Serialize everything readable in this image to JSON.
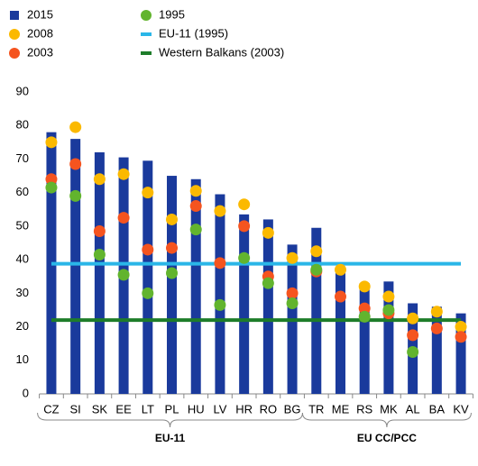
{
  "chart_data": {
    "type": "bar",
    "categories": [
      "CZ",
      "SI",
      "SK",
      "EE",
      "LT",
      "PL",
      "HU",
      "LV",
      "HR",
      "RO",
      "BG",
      "TR",
      "ME",
      "RS",
      "MK",
      "AL",
      "BA",
      "KV"
    ],
    "groups": [
      {
        "label": "EU-11",
        "count": 11
      },
      {
        "label": "EU CC/PCC",
        "count": 7
      }
    ],
    "ylim": [
      0,
      90
    ],
    "yticks": [
      0,
      10,
      20,
      30,
      40,
      50,
      60,
      70,
      80,
      90
    ],
    "series": [
      {
        "name": "2015",
        "type": "bar",
        "color": "#1a3a9c",
        "values": [
          78,
          76,
          72,
          70.5,
          69.5,
          65,
          64,
          59.5,
          53.5,
          52,
          44.5,
          49.5,
          37,
          33,
          33.5,
          27,
          26,
          24
        ]
      },
      {
        "name": "2008",
        "type": "scatter",
        "color": "#fbb900",
        "values": [
          75,
          79.5,
          64,
          65.5,
          60,
          52,
          60.5,
          54.5,
          56.5,
          48,
          40.5,
          42.5,
          37,
          32,
          29,
          22.5,
          24.5,
          20
        ]
      },
      {
        "name": "2003",
        "type": "scatter",
        "color": "#f5541f",
        "values": [
          64,
          68.5,
          48.5,
          52.5,
          43,
          43.5,
          56,
          39,
          50,
          35,
          30,
          36.5,
          29,
          25.5,
          24,
          17.5,
          19.5,
          17
        ]
      },
      {
        "name": "1995",
        "type": "scatter",
        "color": "#62b42e",
        "values": [
          61.5,
          59,
          41.5,
          35.5,
          30,
          36,
          49,
          26.5,
          40.5,
          33,
          27,
          37,
          null,
          23,
          25,
          12.5,
          null,
          null
        ]
      },
      {
        "name": "EU-11 (1995)",
        "type": "hline",
        "color": "#2ab6e8",
        "value": 38.8
      },
      {
        "name": "Western Balkans (2003)",
        "type": "hline",
        "color": "#1e7d2a",
        "value": 22
      }
    ]
  }
}
